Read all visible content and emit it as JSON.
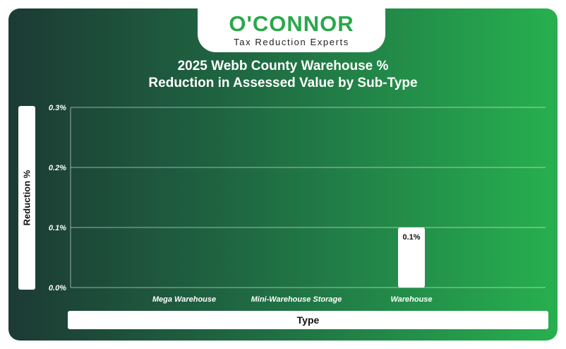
{
  "logo": {
    "name": "O'CONNOR",
    "tagline": "Tax Reduction Experts"
  },
  "colors": {
    "accent": "#2aa84a",
    "gradient_start": "#1c3a34",
    "gradient_end": "#27b04f",
    "bar": "#ffffff"
  },
  "chart_data": {
    "type": "bar",
    "title_line1": "2025 Webb County Warehouse %",
    "title_line2": "Reduction in Assessed Value by Sub-Type",
    "xlabel": "Type",
    "ylabel": "Reduction %",
    "categories": [
      "Mega Warehouse",
      "Mini-Warehouse Storage",
      "Warehouse"
    ],
    "values": [
      0.0,
      0.0,
      0.1
    ],
    "data_labels": [
      "",
      "",
      "0.1%"
    ],
    "ylim": [
      0,
      0.3
    ],
    "yticks": [
      0.0,
      0.1,
      0.2,
      0.3
    ],
    "ytick_labels": [
      "0.0%",
      "0.1%",
      "0.2%",
      "0.3%"
    ],
    "grid": true,
    "legend": "none"
  }
}
